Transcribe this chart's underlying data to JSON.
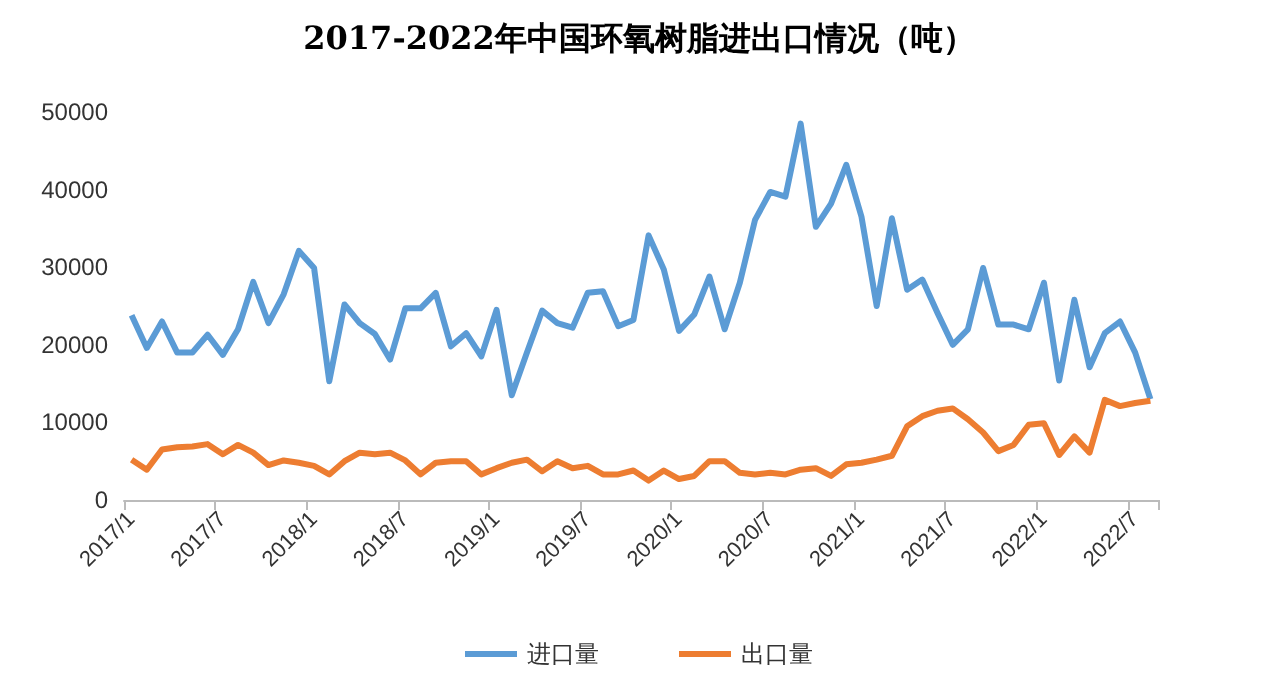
{
  "chart_data": {
    "type": "line",
    "title": "2017-2022年中国环氧树脂进出口情况（吨）",
    "categories": [
      "2017/1",
      null,
      null,
      null,
      null,
      null,
      "2017/7",
      null,
      null,
      null,
      null,
      null,
      "2018/1",
      null,
      null,
      null,
      null,
      null,
      "2018/7",
      null,
      null,
      null,
      null,
      null,
      "2019/1",
      null,
      null,
      null,
      null,
      null,
      "2019/7",
      null,
      null,
      null,
      null,
      null,
      "2020/1",
      null,
      null,
      null,
      null,
      null,
      "2020/7",
      null,
      null,
      null,
      null,
      null,
      "2021/1",
      null,
      null,
      null,
      null,
      null,
      "2021/7",
      null,
      null,
      null,
      null,
      null,
      "2022/1",
      null,
      null,
      null,
      null,
      null,
      "2022/7",
      null
    ],
    "series": [
      {
        "name": "进口量",
        "color": "#5b9bd5",
        "values": [
          23800,
          19600,
          23000,
          19000,
          19000,
          21300,
          18700,
          22000,
          28100,
          22800,
          26500,
          32100,
          29900,
          15300,
          25200,
          22800,
          21400,
          18100,
          24700,
          24700,
          26700,
          19800,
          21500,
          18500,
          24500,
          13500,
          19000,
          24400,
          22800,
          22200,
          26700,
          26900,
          22400,
          23200,
          34100,
          29700,
          21800,
          23900,
          28800,
          22000,
          28000,
          36100,
          39700,
          39100,
          48500,
          35200,
          38200,
          43200,
          36500,
          25000,
          36300,
          27100,
          28400,
          24100,
          20000,
          22000,
          29900,
          22600,
          22600,
          22000,
          28000,
          15400,
          25800,
          17100,
          21500,
          23000,
          19000,
          13000
        ]
      },
      {
        "name": "出口量",
        "color": "#ed7d31",
        "values": [
          5200,
          3900,
          6500,
          6800,
          6900,
          7200,
          5900,
          7100,
          6100,
          4500,
          5100,
          4800,
          4400,
          3300,
          5000,
          6100,
          5900,
          6100,
          5100,
          3300,
          4800,
          5000,
          5000,
          3300,
          4100,
          4800,
          5200,
          3700,
          5000,
          4100,
          4400,
          3300,
          3300,
          3800,
          2500,
          3800,
          2700,
          3100,
          5000,
          5000,
          3500,
          3300,
          3500,
          3300,
          3900,
          4100,
          3100,
          4600,
          4800,
          5200,
          5700,
          9500,
          10800,
          11500,
          11800,
          10400,
          8700,
          6300,
          7100,
          9700,
          9900,
          5800,
          8200,
          6100,
          12900,
          12100,
          12500,
          12800
        ]
      }
    ],
    "ylim": [
      0,
      50000
    ],
    "yticks": [
      0,
      10000,
      20000,
      30000,
      40000,
      50000
    ],
    "grid": false,
    "legend": "bottom",
    "marker": "none",
    "line_style": "solid"
  }
}
